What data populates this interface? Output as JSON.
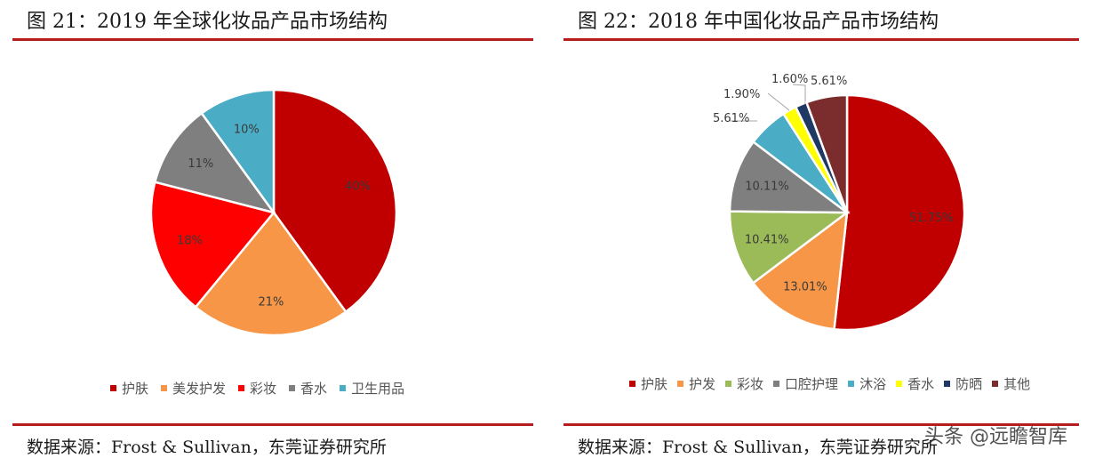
{
  "chart_data": [
    {
      "type": "pie",
      "title": "图 21：2019 年全球化妆品产品市场结构",
      "source": "数据来源：Frost & Sullivan，东莞证券研究所",
      "legend_position": "bottom",
      "slices": [
        {
          "name": "护肤",
          "value": 40,
          "label": "40%",
          "color": "#c00000"
        },
        {
          "name": "美发护发",
          "value": 21,
          "label": "21%",
          "color": "#f79646"
        },
        {
          "name": "彩妆",
          "value": 18,
          "label": "18%",
          "color": "#ff0000"
        },
        {
          "name": "香水",
          "value": 11,
          "label": "11%",
          "color": "#7f7f7f"
        },
        {
          "name": "卫生用品",
          "value": 10,
          "label": "10%",
          "color": "#4bacc6"
        }
      ]
    },
    {
      "type": "pie",
      "title": "图 22：2018 年中国化妆品产品市场结构",
      "source": "数据来源：Frost & Sullivan，东莞证券研究所",
      "legend_position": "bottom",
      "slices": [
        {
          "name": "护肤",
          "value": 51.75,
          "label": "51.75%",
          "color": "#c00000"
        },
        {
          "name": "护发",
          "value": 13.01,
          "label": "13.01%",
          "color": "#f79646"
        },
        {
          "name": "彩妆",
          "value": 10.41,
          "label": "10.41%",
          "color": "#9bbb59"
        },
        {
          "name": "口腔护理",
          "value": 10.11,
          "label": "10.11%",
          "color": "#7f7f7f"
        },
        {
          "name": "沐浴",
          "value": 5.61,
          "label": "5.61%",
          "color": "#4bacc6"
        },
        {
          "name": "香水",
          "value": 1.9,
          "label": "1.90%",
          "color": "#ffff00"
        },
        {
          "name": "防晒",
          "value": 1.6,
          "label": "1.60%",
          "color": "#1f3864"
        },
        {
          "name": "其他",
          "value": 5.61,
          "label": "5.61%",
          "color": "#7b2c2c"
        }
      ]
    }
  ],
  "watermark": "头条 @远瞻智库"
}
